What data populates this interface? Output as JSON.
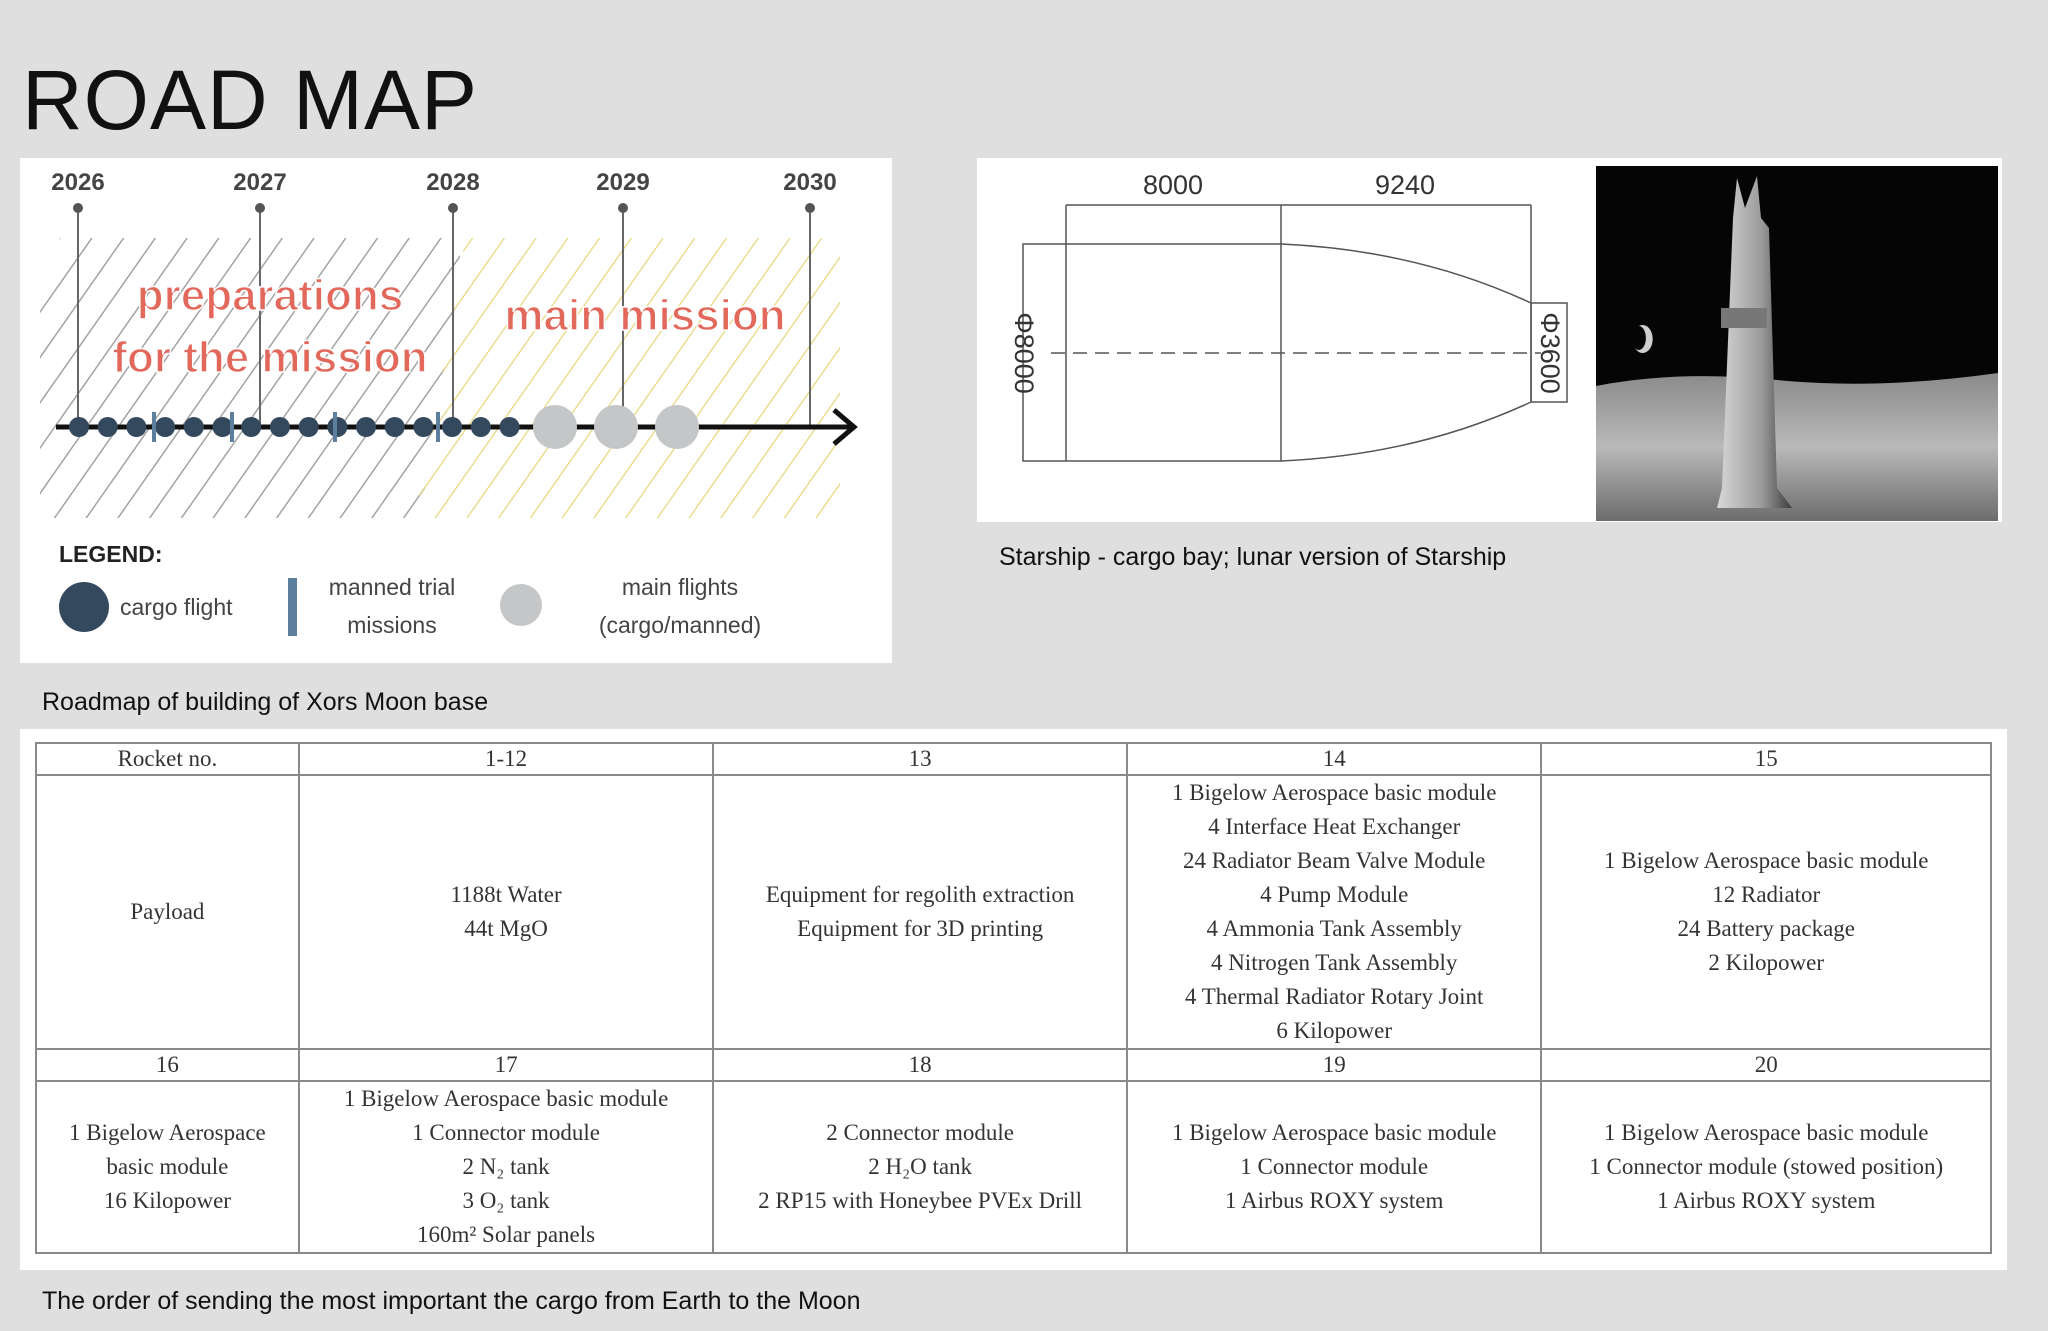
{
  "title": "ROAD MAP",
  "timeline": {
    "years": [
      "2026",
      "2027",
      "2028",
      "2029",
      "2030"
    ],
    "phase_preparation": [
      "preparations",
      "for the mission"
    ],
    "phase_main": "main mission",
    "cargo_flights": 16,
    "manned_trial_missions": 4,
    "main_flights": 3,
    "legend_title": "LEGEND:",
    "legend": {
      "cargo": "cargo flight",
      "manned_1": "manned trial",
      "manned_2": "missions",
      "main_1": "main flights",
      "main_2": "(cargo/manned)"
    },
    "colors": {
      "cargo": "#34495e",
      "manned": "#5b7f9c",
      "main": "#c4c6c7",
      "phase_text": "#e2685c",
      "hatch_prep": "#a3a3a3",
      "hatch_main": "#e6d67c"
    }
  },
  "roadmap_caption": "Roadmap of building of Xors Moon base",
  "starship": {
    "dim_length_1": "8000",
    "dim_length_2": "9240",
    "dim_diameter_1": "Φ8000",
    "dim_diameter_2": "Φ3600",
    "caption": "Starship - cargo bay; lunar version of Starship"
  },
  "table": {
    "rows": [
      {
        "type": "num",
        "cells": [
          [
            "Rocket no."
          ],
          [
            "1-12"
          ],
          [
            "13"
          ],
          [
            "14"
          ],
          [
            "15"
          ]
        ]
      },
      {
        "type": "payload",
        "cells": [
          [
            "Payload"
          ],
          [
            "1188t Water",
            "44t MgO"
          ],
          [
            "Equipment for regolith extraction",
            "Equipment for 3D printing"
          ],
          [
            "1 Bigelow Aerospace basic module",
            "4 Interface Heat Exchanger",
            "24 Radiator Beam Valve Module",
            "4 Pump Module",
            "4 Ammonia Tank Assembly",
            "4 Nitrogen Tank Assembly",
            "4 Thermal Radiator Rotary Joint",
            "6 Kilopower"
          ],
          [
            "1 Bigelow Aerospace basic module",
            "12 Radiator",
            "24 Battery package",
            "2 Kilopower"
          ]
        ]
      },
      {
        "type": "num",
        "cells": [
          [
            "16"
          ],
          [
            "17"
          ],
          [
            "18"
          ],
          [
            "19"
          ],
          [
            "20"
          ]
        ]
      },
      {
        "type": "payload",
        "cells": [
          [
            "1 Bigelow Aerospace",
            "basic module",
            "16 Kilopower"
          ],
          [
            "1 Bigelow Aerospace basic module",
            "1 Connector module",
            "2 N₂ tank",
            "3 O₂ tank",
            "160m² Solar panels"
          ],
          [
            "2 Connector module",
            "2 H₂O tank",
            "2 RP15 with Honeybee PVEx Drill"
          ],
          [
            "1 Bigelow Aerospace basic module",
            "1 Connector module",
            "1 Airbus ROXY system"
          ],
          [
            "1 Bigelow Aerospace basic module",
            "1 Connector module (stowed position)",
            "1 Airbus ROXY system"
          ]
        ]
      }
    ]
  },
  "table_caption": "The order of sending the most important the cargo from Earth to the Moon"
}
